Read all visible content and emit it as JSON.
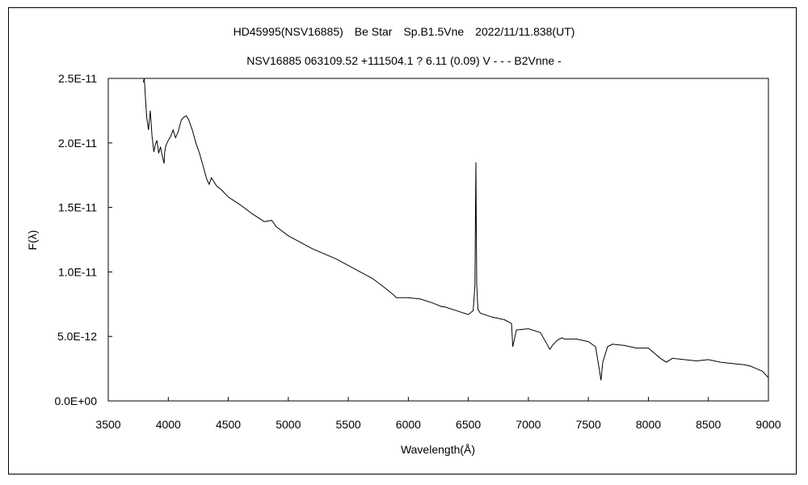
{
  "chart_data": {
    "type": "line",
    "title": "HD45995(NSV16885)　Be Star　Sp.B1.5Vne　2022/11/11.838(UT)",
    "subtitle": "NSV16885 063109.52 +111504.1 ? 6.11 (0.09) V - - - B2Vnne -",
    "xlabel": "Wavelength(Å)",
    "ylabel": "F(λ)",
    "xlim": [
      3500,
      9000
    ],
    "ylim": [
      0,
      2.5e-11
    ],
    "grid": false,
    "x_ticks": [
      3500,
      4000,
      4500,
      5000,
      5500,
      6000,
      6500,
      7000,
      7500,
      8000,
      8500,
      9000
    ],
    "x_tick_labels": [
      "3500",
      "4000",
      "4500",
      "5000",
      "5500",
      "6000",
      "6500",
      "7000",
      "7500",
      "8000",
      "8500",
      "9000"
    ],
    "y_ticks": [
      0,
      5e-12,
      1e-11,
      1.5e-11,
      2e-11,
      2.5e-11
    ],
    "y_tick_labels": [
      "0.0E+00",
      "5.0E-12",
      "1.0E-11",
      "1.5E-11",
      "2.0E-11",
      "2.5E-11"
    ],
    "series": [
      {
        "x": [
          3790,
          3800,
          3810,
          3820,
          3835,
          3850,
          3865,
          3880,
          3890,
          3905,
          3920,
          3935,
          3950,
          3965,
          3970,
          3980,
          4000,
          4020,
          4040,
          4060,
          4080,
          4100,
          4110,
          4130,
          4150,
          4170,
          4200,
          4230,
          4260,
          4290,
          4320,
          4340,
          4360,
          4400,
          4450,
          4500,
          4550,
          4600,
          4700,
          4800,
          4861,
          4900,
          5000,
          5100,
          5200,
          5300,
          5400,
          5500,
          5600,
          5700,
          5800,
          5880,
          5900,
          6000,
          6100,
          6200,
          6280,
          6300,
          6400,
          6500,
          6540,
          6555,
          6560,
          6563,
          6566,
          6570,
          6580,
          6600,
          6700,
          6800,
          6860,
          6870,
          6900,
          7000,
          7100,
          7180,
          7200,
          7240,
          7280,
          7300,
          7400,
          7500,
          7560,
          7590,
          7605,
          7620,
          7660,
          7700,
          7800,
          7900,
          8000,
          8100,
          8150,
          8200,
          8300,
          8400,
          8500,
          8600,
          8700,
          8800,
          8850,
          8900,
          8950,
          9000
        ],
        "y": [
          2.47e-11,
          2.5e-11,
          2.35e-11,
          2.2e-11,
          2.1e-11,
          2.25e-11,
          2.05e-11,
          1.93e-11,
          1.98e-11,
          2.02e-11,
          1.92e-11,
          1.97e-11,
          1.9e-11,
          1.84e-11,
          1.93e-11,
          1.98e-11,
          2.02e-11,
          2.05e-11,
          2.1e-11,
          2.04e-11,
          2.08e-11,
          2.15e-11,
          2.18e-11,
          2.2e-11,
          2.21e-11,
          2.18e-11,
          2.1e-11,
          2e-11,
          1.92e-11,
          1.82e-11,
          1.72e-11,
          1.68e-11,
          1.73e-11,
          1.67e-11,
          1.63e-11,
          1.58e-11,
          1.55e-11,
          1.52e-11,
          1.45e-11,
          1.39e-11,
          1.4e-11,
          1.35e-11,
          1.28e-11,
          1.23e-11,
          1.18e-11,
          1.14e-11,
          1.1e-11,
          1.05e-11,
          1e-11,
          9.5e-12,
          8.8e-12,
          8.2e-12,
          8e-12,
          8e-12,
          7.9e-12,
          7.6e-12,
          7.3e-12,
          7.3e-12,
          7e-12,
          6.7e-12,
          7e-12,
          9e-12,
          1.5e-11,
          1.85e-11,
          1.4e-11,
          9e-12,
          7.1e-12,
          6.8e-12,
          6.5e-12,
          6.3e-12,
          6e-12,
          4.2e-12,
          5.5e-12,
          5.6e-12,
          5.3e-12,
          4e-12,
          4.3e-12,
          4.7e-12,
          4.9e-12,
          4.8e-12,
          4.8e-12,
          4.6e-12,
          4.2e-12,
          2.5e-12,
          1.6e-12,
          3e-12,
          4.2e-12,
          4.4e-12,
          4.3e-12,
          4.1e-12,
          4.1e-12,
          3.3e-12,
          3e-12,
          3.3e-12,
          3.2e-12,
          3.1e-12,
          3.2e-12,
          3e-12,
          2.9e-12,
          2.8e-12,
          2.7e-12,
          2.5e-12,
          2.3e-12,
          1.8e-12
        ]
      }
    ]
  }
}
